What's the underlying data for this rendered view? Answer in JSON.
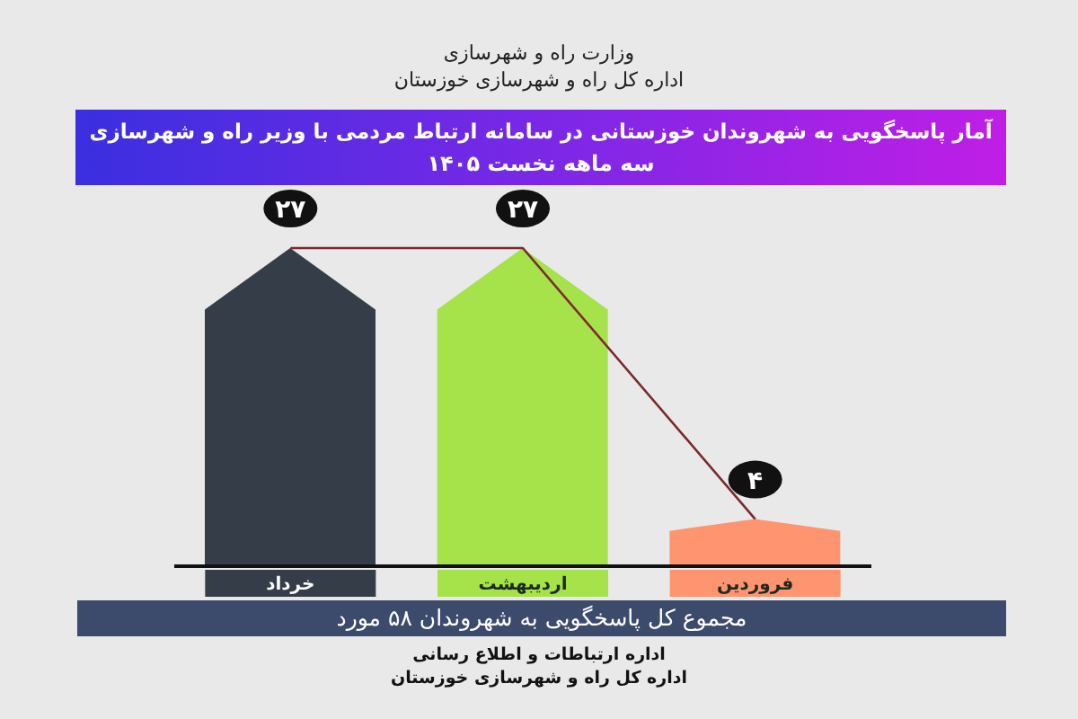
{
  "chart_data": {
    "type": "bar",
    "title": "آمار پاسخگویی به شهروندان خوزستانی در سامانه ارتباط مردمی با وزیر راه و شهرسازی",
    "subtitle": "سه ماهه نخست ۱۴۰۵",
    "categories": [
      "خرداد",
      "اردیبهشت",
      "فروردین"
    ],
    "series": [
      {
        "colors": [
          "#343d48",
          "#a6e24a",
          "#ff9470"
        ],
        "values": [
          27,
          27,
          4
        ]
      },
      {
        "type": "line",
        "color": "#7a2a2a",
        "values": [
          27,
          27,
          4
        ],
        "value_labels": [
          "۲۷",
          "۲۷",
          "۴"
        ]
      }
    ],
    "marker": "none",
    "tick_labels": "x",
    "annotations": [
      "وزارت راه و شهرسازی",
      "اداره کل راه و شهرسازی خوزستان",
      "مجموع کل پاسخگویی به شهروندان ۵۸ مورد",
      "اداره ارتباطات و اطلاع رسانی",
      "اداره کل راه و شهرسازی خوزستان"
    ]
  }
}
